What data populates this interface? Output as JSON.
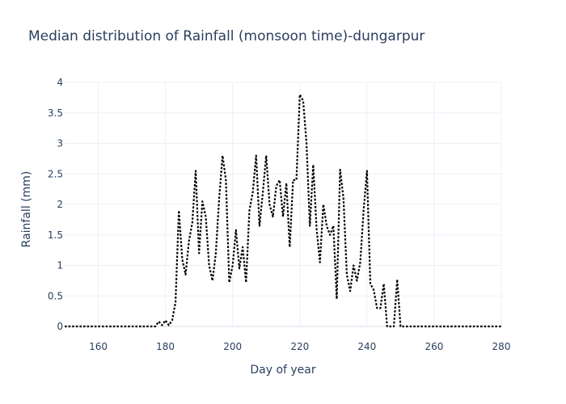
{
  "chart_data": {
    "type": "line",
    "title": "Median distribution of Rainfall (monsoon time)-dungarpur",
    "xlabel": "Day of year",
    "ylabel": "Rainfall (mm)",
    "xlim": [
      150,
      280
    ],
    "ylim": [
      0,
      4
    ],
    "xticks": [
      160,
      180,
      200,
      220,
      240,
      260,
      280
    ],
    "yticks": [
      0,
      0.5,
      1,
      1.5,
      2,
      2.5,
      3,
      3.5,
      4
    ],
    "ytick_labels": [
      "0",
      "0.5",
      "1",
      "1.5",
      "2",
      "2.5",
      "3",
      "3.5",
      "4"
    ],
    "grid": true,
    "line_style": "dotted",
    "line_color": "#000000",
    "series": [
      {
        "x": [
          150,
          151,
          152,
          153,
          154,
          155,
          156,
          157,
          158,
          159,
          160,
          161,
          162,
          163,
          164,
          165,
          166,
          167,
          168,
          169,
          170,
          171,
          172,
          173,
          174,
          175,
          176,
          177,
          178,
          179,
          180,
          181,
          182,
          183,
          184,
          185,
          186,
          187,
          188,
          189,
          190,
          191,
          192,
          193,
          194,
          195,
          196,
          197,
          198,
          199,
          200,
          201,
          202,
          203,
          204,
          205,
          206,
          207,
          208,
          209,
          210,
          211,
          212,
          213,
          214,
          215,
          216,
          217,
          218,
          219,
          220,
          221,
          222,
          223,
          224,
          225,
          226,
          227,
          228,
          229,
          230,
          231,
          232,
          233,
          234,
          235,
          236,
          237,
          238,
          239,
          240,
          241,
          242,
          243,
          244,
          245,
          246,
          247,
          248,
          249,
          250,
          251,
          252,
          253,
          254,
          255,
          256,
          257,
          258,
          259,
          260,
          261,
          262,
          263,
          264,
          265,
          266,
          267,
          268,
          269,
          270,
          271,
          272,
          273,
          274,
          275,
          276,
          277,
          278,
          279,
          280
        ],
        "y": [
          0,
          0,
          0,
          0,
          0,
          0,
          0,
          0,
          0,
          0,
          0,
          0,
          0,
          0,
          0,
          0,
          0,
          0,
          0,
          0,
          0,
          0,
          0,
          0,
          0,
          0,
          0,
          0,
          0.08,
          0.02,
          0.1,
          0.02,
          0.1,
          0.4,
          1.9,
          1.1,
          0.85,
          1.4,
          1.7,
          2.55,
          1.2,
          2.05,
          1.8,
          1.0,
          0.75,
          1.2,
          2.1,
          2.8,
          2.4,
          0.72,
          1.0,
          1.58,
          0.95,
          1.3,
          0.72,
          1.9,
          2.2,
          2.8,
          1.65,
          2.2,
          2.8,
          2.0,
          1.8,
          2.3,
          2.4,
          1.8,
          2.35,
          1.3,
          2.4,
          2.4,
          3.8,
          3.7,
          3.0,
          1.65,
          2.65,
          1.6,
          1.05,
          2.0,
          1.65,
          1.5,
          1.65,
          0.45,
          2.57,
          2.1,
          0.85,
          0.58,
          1.0,
          0.75,
          1.05,
          1.9,
          2.55,
          0.7,
          0.6,
          0.3,
          0.3,
          0.7,
          0,
          0,
          0,
          0.77,
          0,
          0,
          0,
          0,
          0,
          0,
          0,
          0,
          0,
          0,
          0,
          0,
          0,
          0,
          0,
          0,
          0,
          0,
          0,
          0,
          0,
          0,
          0,
          0,
          0,
          0,
          0,
          0,
          0,
          0,
          0
        ]
      }
    ]
  }
}
